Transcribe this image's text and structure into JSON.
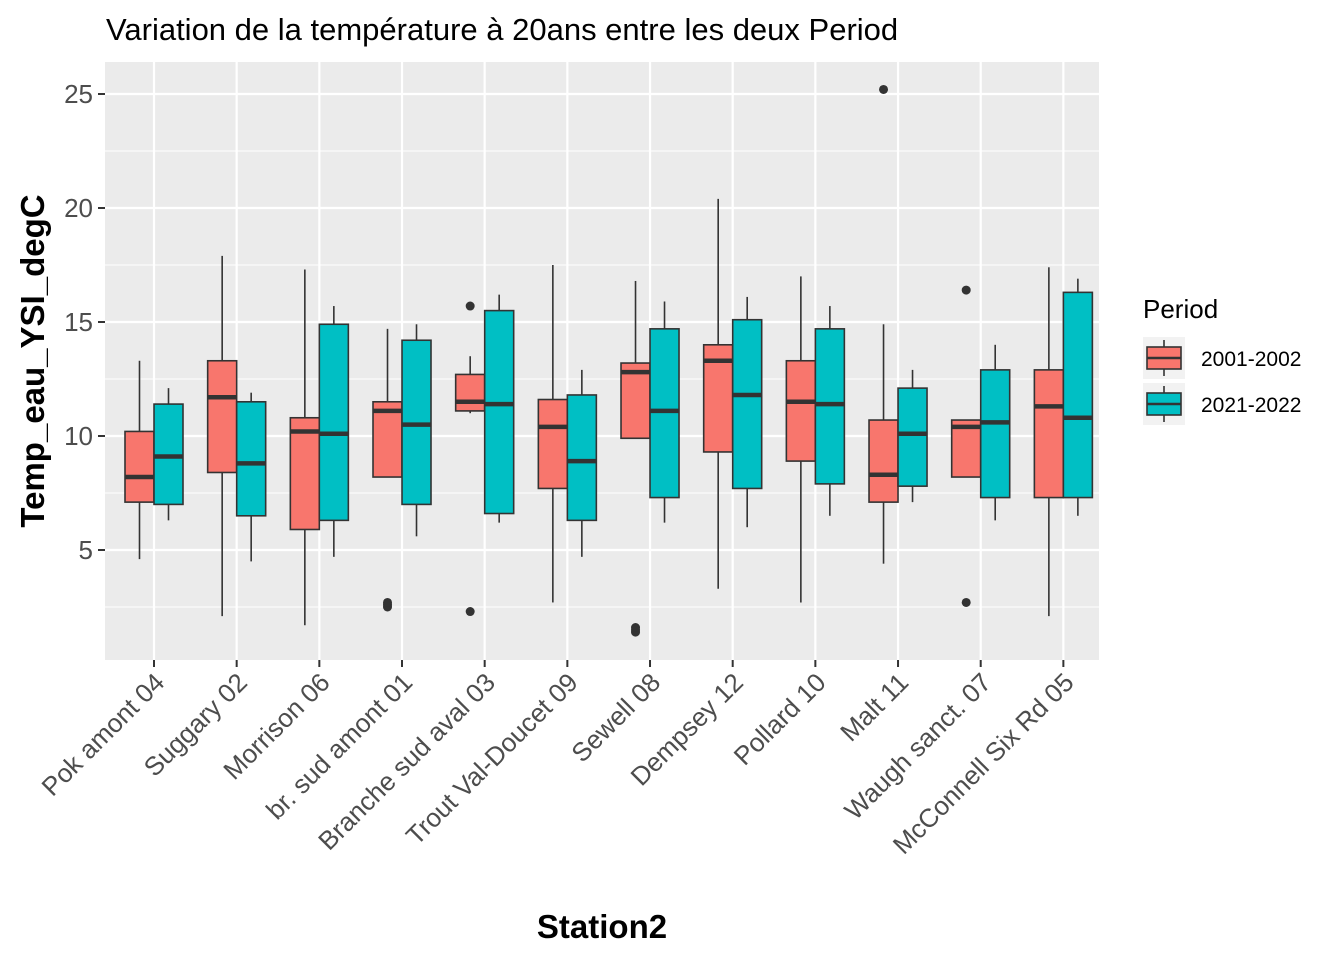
{
  "chart_data": {
    "type": "boxplot",
    "title": "Variation  de la température à 20ans entre les deux Period",
    "xlabel": "Station2",
    "ylabel": "Temp_eau_YSI_degC",
    "ylim": [
      0,
      26.5
    ],
    "yticks": [
      5,
      10,
      15,
      20,
      25
    ],
    "grid": true,
    "legend": {
      "title": "Period",
      "position": "right"
    },
    "categories": [
      "Pok amont 04",
      "Suggary 02",
      "Morrison 06",
      "br. sud amont 01",
      "Branche sud aval 03",
      "Trout Val-Doucet 09",
      "Sewell 08",
      "Dempsey 12",
      "Pollard 10",
      "Malt 11",
      "Waugh sanct. 07",
      "McConnell Six Rd 05"
    ],
    "series": [
      {
        "name": "2001-2002",
        "color": "#F8766D",
        "boxes": [
          {
            "min": 4.6,
            "q1": 7.1,
            "median": 8.2,
            "q3": 10.2,
            "max": 13.3,
            "outliers": []
          },
          {
            "min": 2.1,
            "q1": 8.4,
            "median": 11.7,
            "q3": 13.3,
            "max": 17.9,
            "outliers": []
          },
          {
            "min": 1.7,
            "q1": 5.9,
            "median": 10.2,
            "q3": 10.8,
            "max": 17.3,
            "outliers": []
          },
          {
            "min": 8.2,
            "q1": 8.2,
            "median": 11.1,
            "q3": 11.5,
            "max": 14.7,
            "outliers": [
              2.5,
              2.6,
              2.7
            ]
          },
          {
            "min": 11.0,
            "q1": 11.1,
            "median": 11.5,
            "q3": 12.7,
            "max": 13.5,
            "outliers": [
              2.3,
              15.7
            ]
          },
          {
            "min": 2.7,
            "q1": 7.7,
            "median": 10.4,
            "q3": 11.6,
            "max": 17.5,
            "outliers": []
          },
          {
            "min": 9.9,
            "q1": 9.9,
            "median": 12.8,
            "q3": 13.2,
            "max": 16.8,
            "outliers": [
              1.4,
              1.5,
              1.6
            ]
          },
          {
            "min": 3.3,
            "q1": 9.3,
            "median": 13.3,
            "q3": 14.0,
            "max": 20.4,
            "outliers": []
          },
          {
            "min": 2.7,
            "q1": 8.9,
            "median": 11.5,
            "q3": 13.3,
            "max": 17.0,
            "outliers": []
          },
          {
            "min": 4.4,
            "q1": 7.1,
            "median": 8.3,
            "q3": 10.7,
            "max": 14.9,
            "outliers": [
              25.2
            ]
          },
          {
            "min": 8.2,
            "q1": 8.2,
            "median": 10.4,
            "q3": 10.7,
            "max": 10.7,
            "outliers": [
              2.7,
              16.4
            ]
          },
          {
            "min": 2.1,
            "q1": 7.3,
            "median": 11.3,
            "q3": 12.9,
            "max": 17.4,
            "outliers": []
          }
        ]
      },
      {
        "name": "2021-2022",
        "color": "#00BFC4",
        "boxes": [
          {
            "min": 6.3,
            "q1": 7.0,
            "median": 9.1,
            "q3": 11.4,
            "max": 12.1,
            "outliers": []
          },
          {
            "min": 4.5,
            "q1": 6.5,
            "median": 8.8,
            "q3": 11.5,
            "max": 11.9,
            "outliers": []
          },
          {
            "min": 4.7,
            "q1": 6.3,
            "median": 10.1,
            "q3": 14.9,
            "max": 15.7,
            "outliers": []
          },
          {
            "min": 5.6,
            "q1": 7.0,
            "median": 10.5,
            "q3": 14.2,
            "max": 14.9,
            "outliers": []
          },
          {
            "min": 6.2,
            "q1": 6.6,
            "median": 11.4,
            "q3": 15.5,
            "max": 16.2,
            "outliers": []
          },
          {
            "min": 4.7,
            "q1": 6.3,
            "median": 8.9,
            "q3": 11.8,
            "max": 12.9,
            "outliers": []
          },
          {
            "min": 6.2,
            "q1": 7.3,
            "median": 11.1,
            "q3": 14.7,
            "max": 15.9,
            "outliers": []
          },
          {
            "min": 6.0,
            "q1": 7.7,
            "median": 11.8,
            "q3": 15.1,
            "max": 16.1,
            "outliers": []
          },
          {
            "min": 6.5,
            "q1": 7.9,
            "median": 11.4,
            "q3": 14.7,
            "max": 15.7,
            "outliers": []
          },
          {
            "min": 7.1,
            "q1": 7.8,
            "median": 10.1,
            "q3": 12.1,
            "max": 12.9,
            "outliers": []
          },
          {
            "min": 6.3,
            "q1": 7.3,
            "median": 10.6,
            "q3": 12.9,
            "max": 14.0,
            "outliers": []
          },
          {
            "min": 6.5,
            "q1": 7.3,
            "median": 10.8,
            "q3": 16.3,
            "max": 16.9,
            "outliers": []
          }
        ]
      }
    ]
  }
}
